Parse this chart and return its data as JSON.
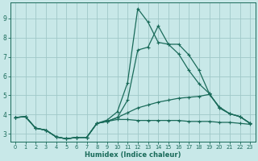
{
  "xlabel": "Humidex (Indice chaleur)",
  "bg_color": "#c8e8e8",
  "grid_color": "#a0c8c8",
  "line_color": "#1a6b5a",
  "xlim": [
    -0.5,
    23.5
  ],
  "ylim": [
    2.6,
    9.8
  ],
  "xticks": [
    0,
    1,
    2,
    3,
    4,
    5,
    6,
    7,
    8,
    9,
    10,
    11,
    12,
    13,
    14,
    15,
    16,
    17,
    18,
    19,
    20,
    21,
    22,
    23
  ],
  "yticks": [
    3,
    4,
    5,
    6,
    7,
    8,
    9
  ],
  "line_sharp_x": [
    0,
    1,
    2,
    3,
    4,
    5,
    6,
    7,
    8,
    9,
    10,
    11,
    12,
    13,
    14,
    15,
    16,
    17,
    18,
    19,
    20,
    21,
    22,
    23
  ],
  "line_sharp_y": [
    3.85,
    3.9,
    3.3,
    3.2,
    2.85,
    2.75,
    2.82,
    2.82,
    3.55,
    3.72,
    4.15,
    5.65,
    9.5,
    8.8,
    7.75,
    7.65,
    7.15,
    6.3,
    5.6,
    5.1,
    4.35,
    4.05,
    3.9,
    3.55
  ],
  "line_broad_x": [
    0,
    1,
    2,
    3,
    4,
    5,
    6,
    7,
    8,
    9,
    10,
    11,
    12,
    13,
    14,
    15,
    16,
    17,
    18,
    19,
    20,
    21,
    22,
    23
  ],
  "line_broad_y": [
    3.85,
    3.9,
    3.3,
    3.2,
    2.85,
    2.75,
    2.82,
    2.82,
    3.55,
    3.65,
    3.85,
    4.75,
    7.35,
    7.5,
    8.6,
    7.65,
    7.65,
    7.1,
    6.3,
    5.1,
    4.35,
    4.05,
    3.9,
    3.55
  ],
  "line_rise_x": [
    0,
    1,
    2,
    3,
    4,
    5,
    6,
    7,
    8,
    9,
    10,
    11,
    12,
    13,
    14,
    15,
    16,
    17,
    18,
    19,
    20,
    21,
    22,
    23
  ],
  "line_rise_y": [
    3.85,
    3.9,
    3.3,
    3.2,
    2.85,
    2.75,
    2.82,
    2.82,
    3.55,
    3.65,
    3.85,
    4.1,
    4.35,
    4.5,
    4.65,
    4.75,
    4.85,
    4.9,
    4.95,
    5.05,
    4.4,
    4.05,
    3.9,
    3.55
  ],
  "line_flat_x": [
    0,
    1,
    2,
    3,
    4,
    5,
    6,
    7,
    8,
    9,
    10,
    11,
    12,
    13,
    14,
    15,
    16,
    17,
    18,
    19,
    20,
    21,
    22,
    23
  ],
  "line_flat_y": [
    3.85,
    3.9,
    3.3,
    3.2,
    2.85,
    2.75,
    2.82,
    2.82,
    3.55,
    3.65,
    3.75,
    3.75,
    3.7,
    3.7,
    3.7,
    3.7,
    3.7,
    3.65,
    3.65,
    3.65,
    3.6,
    3.6,
    3.55,
    3.5
  ]
}
